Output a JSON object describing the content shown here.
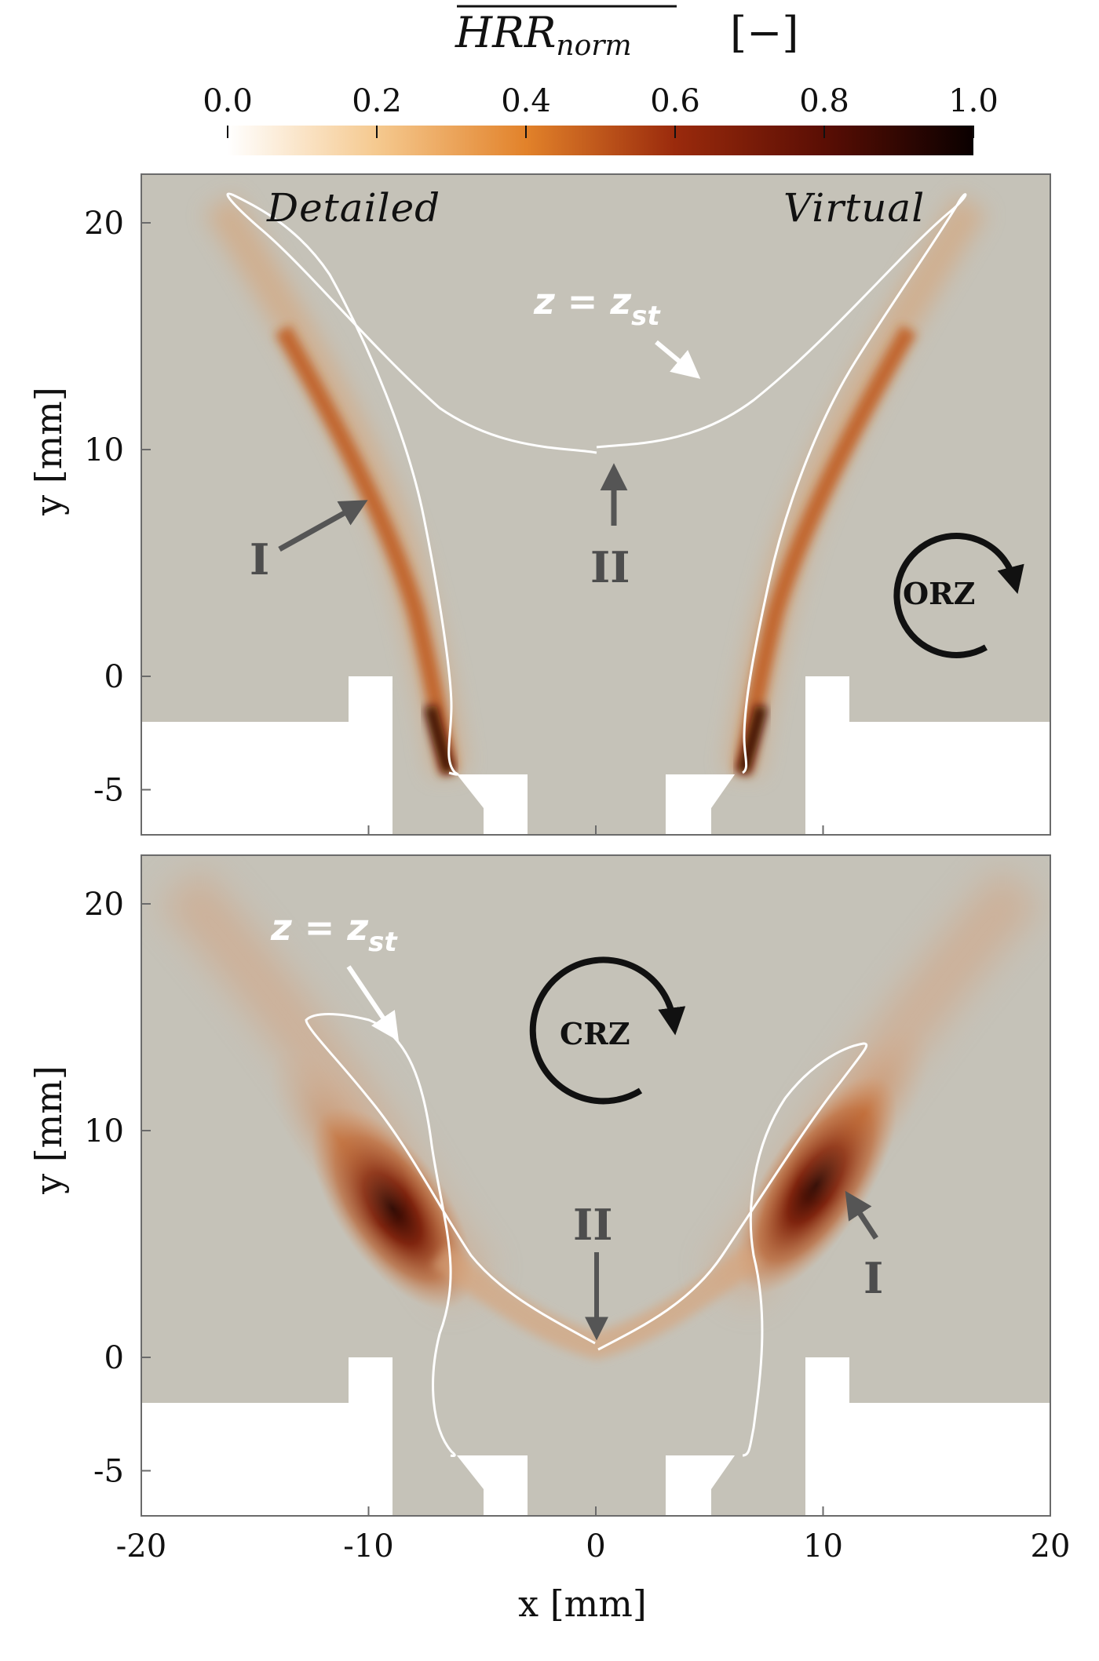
{
  "colorbar": {
    "title": "HRR",
    "title_subscript": "norm",
    "unit": "[−]",
    "ticks": [
      "0.0",
      "0.2",
      "0.4",
      "0.6",
      "0.8",
      "1.0"
    ],
    "colors": [
      "#ffffff",
      "#f5c98f",
      "#e2822a",
      "#9a2a0c",
      "#5a0e04",
      "#0a0000"
    ]
  },
  "panels": [
    {
      "left_label": "Detailed",
      "right_label": "Virtual",
      "iso_label": "z = z",
      "iso_subscript": "st",
      "marker_1": "I",
      "marker_2": "II",
      "zone": "ORZ",
      "y_label": "y [mm]",
      "y_ticks": [
        "20",
        "10",
        "0",
        "-5"
      ]
    },
    {
      "iso_label": "z = z",
      "iso_subscript": "st",
      "marker_1": "I",
      "marker_2": "II",
      "zone": "CRZ",
      "y_label": "y [mm]",
      "y_ticks": [
        "20",
        "10",
        "0",
        "-5"
      ]
    }
  ],
  "x_axis": {
    "label": "x [mm]",
    "ticks": [
      "-20",
      "-10",
      "0",
      "10",
      "20"
    ]
  },
  "colors": {
    "background_field": "#c5c2b8",
    "wall": "#ffffff",
    "isoline": "#ffffff",
    "arrow_gray": "#555555",
    "flame_mid": "#b2480f",
    "flame_dark": "#2a0500"
  }
}
